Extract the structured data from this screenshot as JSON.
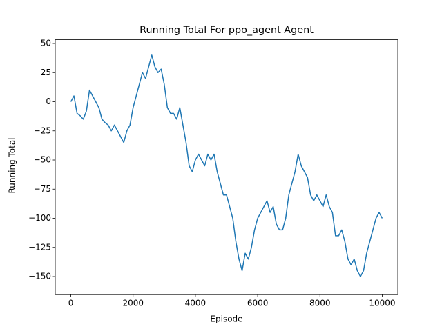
{
  "chart_data": {
    "type": "line",
    "title": "Running Total For ppo_agent Agent",
    "x_label": "Episode",
    "y_label": "Running Total",
    "x": [
      0,
      100,
      200,
      300,
      400,
      500,
      600,
      700,
      800,
      900,
      1000,
      1100,
      1200,
      1300,
      1400,
      1500,
      1600,
      1700,
      1800,
      1900,
      2000,
      2100,
      2200,
      2300,
      2400,
      2500,
      2600,
      2700,
      2800,
      2900,
      3000,
      3100,
      3200,
      3300,
      3400,
      3500,
      3600,
      3700,
      3800,
      3900,
      4000,
      4100,
      4200,
      4300,
      4400,
      4500,
      4600,
      4700,
      4800,
      4900,
      5000,
      5100,
      5200,
      5300,
      5400,
      5500,
      5600,
      5700,
      5800,
      5900,
      6000,
      6100,
      6200,
      6300,
      6400,
      6500,
      6600,
      6700,
      6800,
      6900,
      7000,
      7100,
      7200,
      7300,
      7400,
      7500,
      7600,
      7700,
      7800,
      7900,
      8000,
      8100,
      8200,
      8300,
      8400,
      8500,
      8600,
      8700,
      8800,
      8900,
      9000,
      9100,
      9200,
      9300,
      9400,
      9500,
      9600,
      9700,
      9800,
      9900,
      10000
    ],
    "series": [
      {
        "color": "#1f77b4",
        "values": [
          0,
          5,
          -10,
          -12,
          -15,
          -8,
          10,
          5,
          0,
          -5,
          -15,
          -18,
          -20,
          -25,
          -20,
          -25,
          -30,
          -35,
          -25,
          -20,
          -5,
          5,
          15,
          25,
          20,
          30,
          40,
          30,
          25,
          28,
          15,
          -5,
          -10,
          -10,
          -15,
          -5,
          -20,
          -35,
          -55,
          -60,
          -50,
          -45,
          -50,
          -55,
          -45,
          -50,
          -45,
          -60,
          -70,
          -80,
          -80,
          -90,
          -100,
          -120,
          -135,
          -145,
          -130,
          -135,
          -125,
          -110,
          -100,
          -95,
          -90,
          -85,
          -95,
          -90,
          -105,
          -110,
          -110,
          -100,
          -80,
          -70,
          -60,
          -45,
          -55,
          -60,
          -65,
          -80,
          -85,
          -80,
          -85,
          -90,
          -80,
          -90,
          -95,
          -115,
          -115,
          -110,
          -120,
          -135,
          -140,
          -135,
          -145,
          -150,
          -145,
          -130,
          -120,
          -110,
          -100,
          -95,
          -100
        ]
      }
    ],
    "xlim": [
      -500,
      10500
    ],
    "ylim": [
      -165.5,
      53.2
    ],
    "xticks": [
      0,
      2000,
      4000,
      6000,
      8000,
      10000
    ],
    "yticks": [
      {
        "value": -150,
        "label": "−150"
      },
      {
        "value": -125,
        "label": "−125"
      },
      {
        "value": -100,
        "label": "−100"
      },
      {
        "value": -75,
        "label": "−75"
      },
      {
        "value": -50,
        "label": "−50"
      },
      {
        "value": -25,
        "label": "−25"
      },
      0,
      25,
      50
    ]
  }
}
